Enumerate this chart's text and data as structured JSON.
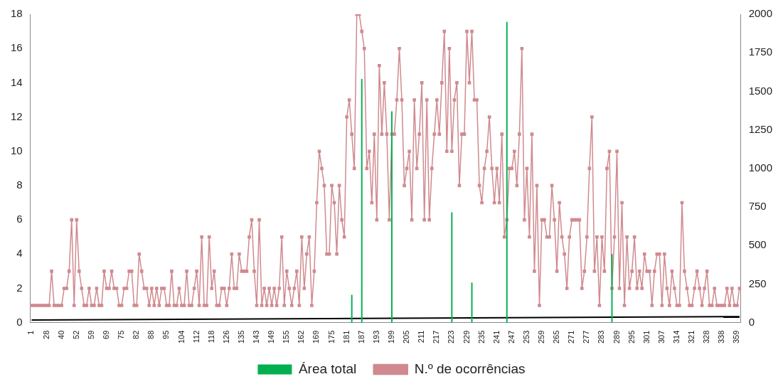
{
  "chart_data": {
    "type": "bar",
    "categories": [
      "1",
      null,
      null,
      null,
      null,
      null,
      "28",
      null,
      null,
      null,
      null,
      null,
      "40",
      null,
      null,
      null,
      null,
      null,
      "52",
      null,
      null,
      null,
      null,
      null,
      "59",
      null,
      null,
      null,
      null,
      null,
      "69",
      null,
      null,
      null,
      null,
      null,
      "75",
      null,
      null,
      null,
      null,
      null,
      "82",
      null,
      null,
      null,
      null,
      null,
      "88",
      null,
      null,
      null,
      null,
      null,
      "95",
      null,
      null,
      null,
      null,
      null,
      "104",
      null,
      null,
      null,
      null,
      null,
      "112",
      null,
      null,
      null,
      null,
      null,
      "118",
      null,
      null,
      null,
      null,
      null,
      "126",
      null,
      null,
      null,
      null,
      null,
      "135",
      null,
      null,
      null,
      null,
      null,
      "143",
      null,
      null,
      null,
      null,
      null,
      "149",
      null,
      null,
      null,
      null,
      null,
      "155",
      null,
      null,
      null,
      null,
      null,
      "162",
      null,
      null,
      null,
      null,
      null,
      "169",
      null,
      null,
      null,
      null,
      null,
      "175",
      null,
      null,
      null,
      null,
      null,
      "181",
      null,
      null,
      null,
      null,
      null,
      "187",
      null,
      null,
      null,
      null,
      null,
      "193",
      null,
      null,
      null,
      null,
      null,
      "199",
      null,
      null,
      null,
      null,
      null,
      "205",
      null,
      null,
      null,
      null,
      null,
      "211",
      null,
      null,
      null,
      null,
      null,
      "217",
      null,
      null,
      null,
      null,
      null,
      "223",
      null,
      null,
      null,
      null,
      null,
      "229",
      null,
      null,
      null,
      null,
      null,
      "235",
      null,
      null,
      null,
      null,
      null,
      "241",
      null,
      null,
      null,
      null,
      null,
      "247",
      null,
      null,
      null,
      null,
      null,
      "253",
      null,
      null,
      null,
      null,
      null,
      "259",
      null,
      null,
      null,
      null,
      null,
      "265",
      null,
      null,
      null,
      null,
      null,
      "271",
      null,
      null,
      null,
      null,
      null,
      "277",
      null,
      null,
      null,
      null,
      null,
      "283",
      null,
      null,
      null,
      null,
      null,
      "289",
      null,
      null,
      null,
      null,
      null,
      "295",
      null,
      null,
      null,
      null,
      null,
      "301",
      null,
      null,
      null,
      null,
      null,
      "307",
      null,
      null,
      null,
      null,
      null,
      "314",
      null,
      null,
      null,
      null,
      null,
      "321",
      null,
      null,
      null,
      null,
      null,
      "328",
      null,
      null,
      null,
      null,
      null,
      "338",
      null,
      null,
      null,
      null,
      null,
      "359",
      null
    ],
    "series": [
      {
        "name": "Área total",
        "color": "#00b050",
        "axis": "y2",
        "values": [
          null,
          null,
          null,
          null,
          null,
          null,
          null,
          null,
          null,
          null,
          null,
          null,
          null,
          null,
          null,
          null,
          null,
          null,
          null,
          null,
          null,
          null,
          null,
          null,
          null,
          null,
          null,
          null,
          null,
          null,
          null,
          null,
          null,
          null,
          null,
          null,
          null,
          null,
          null,
          null,
          null,
          null,
          null,
          null,
          null,
          null,
          null,
          null,
          null,
          null,
          null,
          null,
          null,
          null,
          null,
          null,
          null,
          null,
          null,
          null,
          null,
          null,
          null,
          null,
          null,
          null,
          null,
          null,
          null,
          null,
          null,
          null,
          null,
          null,
          null,
          null,
          null,
          null,
          null,
          null,
          null,
          null,
          null,
          null,
          null,
          null,
          null,
          null,
          null,
          null,
          null,
          null,
          null,
          null,
          null,
          null,
          null,
          null,
          null,
          null,
          null,
          null,
          null,
          null,
          null,
          null,
          null,
          null,
          null,
          null,
          null,
          null,
          null,
          null,
          null,
          null,
          null,
          null,
          null,
          null,
          null,
          null,
          null,
          null,
          null,
          null,
          null,
          null,
          180,
          null,
          null,
          null,
          1580,
          null,
          null,
          null,
          null,
          null,
          null,
          null,
          null,
          null,
          null,
          null,
          1370,
          null,
          null,
          null,
          null,
          null,
          null,
          null,
          null,
          null,
          null,
          null,
          null,
          null,
          null,
          null,
          null,
          null,
          null,
          null,
          null,
          null,
          null,
          null,
          715,
          null,
          null,
          null,
          null,
          null,
          null,
          null,
          260,
          null,
          null,
          null,
          null,
          null,
          null,
          null,
          null,
          null,
          null,
          null,
          null,
          null,
          1950,
          null,
          null,
          null,
          null,
          null,
          null,
          null,
          null,
          null,
          null,
          null,
          null,
          null,
          null,
          null,
          null,
          null,
          null,
          null,
          null,
          null,
          null,
          null,
          null,
          null,
          null,
          null,
          null,
          null,
          null,
          null,
          null,
          null,
          null,
          null,
          null,
          null,
          null,
          null,
          null,
          null,
          445,
          null,
          null,
          null,
          null,
          null,
          null,
          null,
          null,
          null,
          null,
          null,
          null,
          null,
          null,
          null,
          null,
          null,
          null,
          null,
          null,
          null,
          null,
          null,
          null,
          null,
          null,
          null,
          null,
          null,
          null,
          null,
          null,
          null,
          null,
          null,
          null,
          null,
          null,
          null,
          null,
          null,
          null,
          null,
          null,
          null,
          null,
          null,
          null,
          null,
          null,
          null
        ]
      },
      {
        "name": "N.º de ocorrências",
        "type": "line",
        "color": "#d08a8f",
        "marker": "square",
        "values": [
          1,
          1,
          1,
          1,
          1,
          1,
          1,
          1,
          3,
          1,
          1,
          1,
          1,
          2,
          2,
          3,
          6,
          1,
          6,
          3,
          2,
          1,
          1,
          2,
          1,
          1,
          2,
          1,
          1,
          3,
          2,
          2,
          3,
          2,
          2,
          1,
          1,
          2,
          2,
          3,
          3,
          1,
          1,
          4,
          3,
          2,
          2,
          1,
          2,
          1,
          2,
          1,
          2,
          2,
          1,
          1,
          3,
          1,
          1,
          2,
          1,
          1,
          3,
          1,
          1,
          2,
          3,
          1,
          5,
          1,
          1,
          5,
          2,
          3,
          1,
          1,
          2,
          2,
          1,
          2,
          4,
          2,
          2,
          4,
          3,
          3,
          3,
          5,
          6,
          3,
          1,
          6,
          1,
          2,
          1,
          2,
          1,
          2,
          1,
          2,
          5,
          1,
          3,
          2,
          1,
          2,
          3,
          1,
          5,
          2,
          4,
          5,
          1,
          3,
          7,
          10,
          9,
          8,
          4,
          4,
          8,
          7,
          4,
          8,
          6,
          5,
          12,
          13,
          11,
          9,
          18,
          18,
          17,
          16,
          9,
          10,
          7,
          11,
          6,
          15,
          11,
          14,
          11,
          6,
          11,
          11,
          13,
          16,
          13,
          8,
          9,
          10,
          6,
          13,
          9,
          11,
          14,
          6,
          13,
          6,
          9,
          11,
          13,
          11,
          14,
          17,
          10,
          16,
          10,
          13,
          14,
          8,
          11,
          11,
          17,
          14,
          17,
          13,
          13,
          8,
          7,
          9,
          10,
          12,
          9,
          7,
          9,
          7,
          11,
          5,
          6,
          9,
          9,
          10,
          8,
          11,
          16,
          6,
          9,
          5,
          11,
          3,
          8,
          1,
          6,
          6,
          5,
          5,
          8,
          6,
          3,
          7,
          5,
          4,
          2,
          5,
          6,
          6,
          6,
          6,
          2,
          3,
          5,
          9,
          12,
          3,
          5,
          1,
          5,
          3,
          9,
          10,
          2,
          5,
          10,
          2,
          7,
          1,
          5,
          2,
          3,
          5,
          2,
          3,
          2,
          4,
          3,
          3,
          1,
          3,
          4,
          4,
          1,
          4,
          2,
          1,
          3,
          2,
          1,
          1,
          7,
          3,
          2,
          1,
          1,
          2,
          3,
          2,
          1,
          2,
          3,
          1,
          1,
          2,
          1,
          1,
          1,
          1,
          2,
          1,
          2,
          1,
          1,
          2
        ]
      },
      {
        "type": "line",
        "axis": "y2",
        "color": "#000000",
        "marker": "none",
        "values": [
          17,
          null,
          null,
          null,
          null,
          null,
          null,
          null,
          null,
          null,
          null,
          null,
          null,
          null,
          null,
          null,
          null,
          null,
          null,
          null,
          null,
          null,
          null,
          null,
          null,
          null,
          null,
          null,
          null,
          null,
          null,
          null,
          null,
          null,
          null,
          null,
          null,
          null,
          null,
          null,
          null,
          null,
          null,
          null,
          null,
          null,
          null,
          null,
          null,
          null,
          null,
          null,
          null,
          null,
          null,
          null,
          null,
          null,
          null,
          null,
          null,
          null,
          null,
          null,
          null,
          null,
          null,
          null,
          null,
          null,
          null,
          null,
          null,
          null,
          null,
          null,
          null,
          null,
          null,
          null,
          null,
          null,
          null,
          null,
          null,
          null,
          null,
          null,
          null,
          null,
          null,
          null,
          null,
          null,
          null,
          null,
          null,
          null,
          null,
          null,
          null,
          null,
          null,
          null,
          null,
          null,
          null,
          null,
          null,
          null,
          null,
          null,
          null,
          null,
          null,
          null,
          null,
          null,
          null,
          null,
          null,
          null,
          null,
          null,
          null,
          null,
          null,
          null,
          null,
          null,
          null,
          null,
          null,
          null,
          null,
          null,
          null,
          null,
          null,
          null,
          null,
          null,
          null,
          null,
          null,
          null,
          null,
          null,
          null,
          null,
          null,
          null,
          null,
          null,
          null,
          null,
          null,
          null,
          null,
          null,
          null,
          null,
          null,
          null,
          null,
          null,
          null,
          null,
          null,
          null,
          null,
          null,
          null,
          null,
          null,
          null,
          null,
          null,
          null,
          null,
          null,
          null,
          null,
          null,
          null,
          null,
          null,
          null,
          null,
          null,
          null,
          null,
          null,
          null,
          null,
          null,
          null,
          null,
          null,
          null,
          null,
          null,
          null,
          null,
          null,
          null,
          null,
          null,
          null,
          null,
          null,
          null,
          null,
          null,
          null,
          null,
          null,
          null,
          null,
          null,
          null,
          null,
          null,
          null,
          null,
          null,
          null,
          null,
          null,
          null,
          null,
          null,
          null,
          null,
          null,
          null,
          null,
          null,
          null,
          null,
          null,
          null,
          null,
          null,
          null,
          null,
          null,
          null,
          null,
          null,
          null,
          null,
          null,
          null,
          null,
          null,
          null,
          null,
          null,
          null,
          null,
          null,
          null,
          null,
          null,
          null,
          null,
          null,
          null,
          null,
          null,
          null,
          null,
          null,
          null,
          null,
          null,
          null,
          null,
          null,
          null,
          null,
          null,
          39
        ]
      }
    ],
    "ylim": [
      0,
      18
    ],
    "yticks": [
      0,
      2,
      4,
      6,
      8,
      10,
      12,
      14,
      16,
      18
    ],
    "y2lim": [
      0,
      2000
    ],
    "y2ticks": [
      0,
      250,
      500,
      750,
      1000,
      1250,
      1500,
      1750,
      2000
    ],
    "legend": "bottom",
    "grid": false
  }
}
